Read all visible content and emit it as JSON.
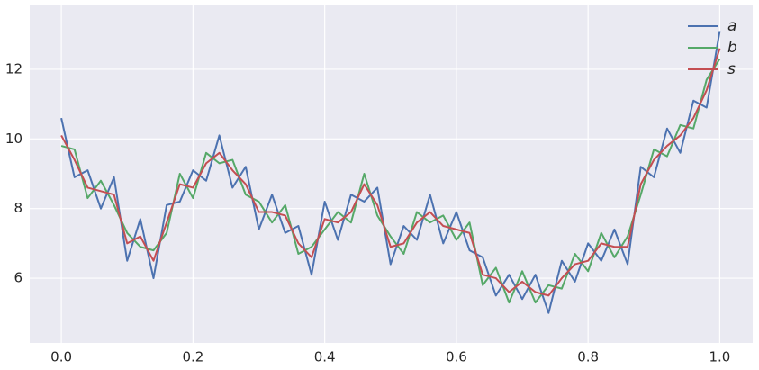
{
  "chart_data": {
    "type": "line",
    "x": [
      0,
      0.02,
      0.04,
      0.06,
      0.08,
      0.1,
      0.12,
      0.14,
      0.16,
      0.18,
      0.2,
      0.22,
      0.24,
      0.26,
      0.28,
      0.3,
      0.32,
      0.34,
      0.36,
      0.38,
      0.4,
      0.42,
      0.44,
      0.46,
      0.48,
      0.5,
      0.52,
      0.54,
      0.56,
      0.58,
      0.6,
      0.62,
      0.64,
      0.66,
      0.68,
      0.7,
      0.72,
      0.74,
      0.76,
      0.78,
      0.8,
      0.82,
      0.84,
      0.86,
      0.88,
      0.9,
      0.92,
      0.94,
      0.96,
      0.98,
      1
    ],
    "series": [
      {
        "name": "a",
        "color": "#4c72b0",
        "values": [
          10.6,
          8.9,
          9.1,
          8.0,
          8.9,
          6.5,
          7.7,
          6.0,
          8.1,
          8.2,
          9.1,
          8.8,
          10.1,
          8.6,
          9.2,
          7.4,
          8.4,
          7.3,
          7.5,
          6.1,
          8.2,
          7.1,
          8.4,
          8.2,
          8.6,
          6.4,
          7.5,
          7.1,
          8.4,
          7.0,
          7.9,
          6.8,
          6.6,
          5.5,
          6.1,
          5.4,
          6.1,
          5.0,
          6.5,
          5.9,
          7.0,
          6.5,
          7.4,
          6.4,
          9.2,
          8.9,
          10.3,
          9.6,
          11.1,
          10.9,
          13.1
        ]
      },
      {
        "name": "b",
        "color": "#55a868",
        "values": [
          9.8,
          9.7,
          8.3,
          8.8,
          8.1,
          7.3,
          6.9,
          6.8,
          7.3,
          9.0,
          8.3,
          9.6,
          9.3,
          9.4,
          8.4,
          8.2,
          7.6,
          8.1,
          6.7,
          6.9,
          7.4,
          7.9,
          7.6,
          9.0,
          7.8,
          7.2,
          6.7,
          7.9,
          7.6,
          7.8,
          7.1,
          7.6,
          5.8,
          6.3,
          5.3,
          6.2,
          5.3,
          5.8,
          5.7,
          6.7,
          6.2,
          7.3,
          6.6,
          7.2,
          8.4,
          9.7,
          9.5,
          10.4,
          10.3,
          11.7,
          12.3
        ]
      },
      {
        "name": "s",
        "color": "#c44e52",
        "values": [
          10.1,
          9.4,
          8.6,
          8.5,
          8.4,
          7.0,
          7.2,
          6.5,
          7.6,
          8.7,
          8.6,
          9.3,
          9.6,
          9.1,
          8.7,
          7.9,
          7.9,
          7.8,
          7.0,
          6.6,
          7.7,
          7.6,
          7.9,
          8.7,
          8.1,
          6.9,
          7.0,
          7.6,
          7.9,
          7.5,
          7.4,
          7.3,
          6.1,
          6.0,
          5.6,
          5.9,
          5.6,
          5.5,
          6.0,
          6.4,
          6.5,
          7.0,
          6.9,
          6.9,
          8.7,
          9.4,
          9.8,
          10.1,
          10.6,
          11.4,
          12.6
        ]
      }
    ],
    "xlim": [
      -0.048,
      1.05
    ],
    "xticks": [
      {
        "value": 0,
        "label": "0.0"
      },
      0.2,
      0.4,
      0.6,
      0.8,
      {
        "value": 1,
        "label": "1.0"
      }
    ],
    "ylim": [
      4.14,
      13.86
    ],
    "yticks": [
      6,
      8,
      10,
      12
    ],
    "grid": true,
    "legend": "upper right"
  }
}
